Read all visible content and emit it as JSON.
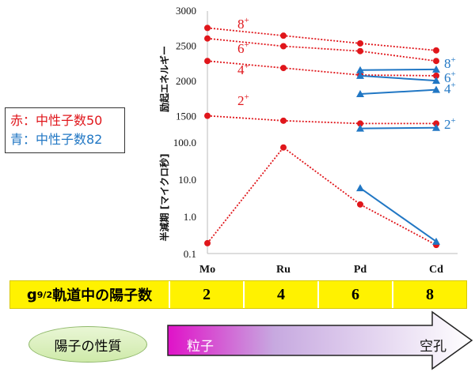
{
  "chart_data": [
    {
      "type": "line",
      "categories": [
        "Mo",
        "Ru",
        "Pd",
        "Cd"
      ],
      "ylabel": "励起エネルギー",
      "ylim": [
        1000,
        3000
      ],
      "yticks": [
        "3000",
        "2500",
        "2000",
        "1500"
      ],
      "series": [
        {
          "name": "8+",
          "group": "N50",
          "x": [
            "Mo",
            "Ru",
            "Pd",
            "Cd"
          ],
          "values": [
            2760,
            2650,
            2540,
            2440
          ]
        },
        {
          "name": "6+",
          "group": "N50",
          "x": [
            "Mo",
            "Ru",
            "Pd",
            "Cd"
          ],
          "values": [
            2610,
            2500,
            2430,
            2290
          ]
        },
        {
          "name": "4+",
          "group": "N50",
          "x": [
            "Mo",
            "Ru",
            "Pd",
            "Cd"
          ],
          "values": [
            2290,
            2190,
            2090,
            2080
          ]
        },
        {
          "name": "2+",
          "group": "N50",
          "x": [
            "Mo",
            "Ru",
            "Pd",
            "Cd"
          ],
          "values": [
            1510,
            1440,
            1400,
            1400
          ]
        },
        {
          "name": "8+",
          "group": "N82",
          "x": [
            "Pd",
            "Cd"
          ],
          "values": [
            2160,
            2170
          ]
        },
        {
          "name": "6+",
          "group": "N82",
          "x": [
            "Pd",
            "Cd"
          ],
          "values": [
            2080,
            2010
          ]
        },
        {
          "name": "4+",
          "group": "N82",
          "x": [
            "Pd",
            "Cd"
          ],
          "values": [
            1820,
            1880
          ]
        },
        {
          "name": "2+",
          "group": "N82",
          "x": [
            "Pd",
            "Cd"
          ],
          "values": [
            1330,
            1340
          ]
        }
      ]
    },
    {
      "type": "line",
      "scale": "log",
      "categories": [
        "Mo",
        "Ru",
        "Pd",
        "Cd"
      ],
      "ylabel": "半減期 [マイクロ秒]",
      "ylim": [
        0.1,
        100
      ],
      "yticks": [
        "100.0",
        "10.0",
        "1.0",
        "0.1"
      ],
      "series": [
        {
          "group": "N50",
          "x": [
            "Mo",
            "Ru",
            "Pd",
            "Cd"
          ],
          "values": [
            0.19,
            72,
            2.1,
            0.17
          ]
        },
        {
          "group": "N82",
          "x": [
            "Pd",
            "Cd"
          ],
          "values": [
            5.8,
            0.21
          ]
        }
      ]
    }
  ],
  "colors": {
    "red": "#e0161b",
    "blue": "#2177c4"
  },
  "legend": {
    "red": "赤：中性子数50",
    "blue": "青：中性子数82"
  },
  "state_labels": {
    "red": {
      "8": "8",
      "6": "6",
      "4": "4",
      "2": "2"
    },
    "blue": {
      "8": "8",
      "6": "6",
      "4": "4",
      "2": "2"
    },
    "sup": "+"
  },
  "table": {
    "header_g": "g",
    "header_sub": "9/2",
    "header_rest": "軌道中の陽子数",
    "values": [
      "2",
      "4",
      "6",
      "8"
    ]
  },
  "nature": {
    "label": "陽子の性質",
    "left": "粒子",
    "right": "空孔"
  }
}
